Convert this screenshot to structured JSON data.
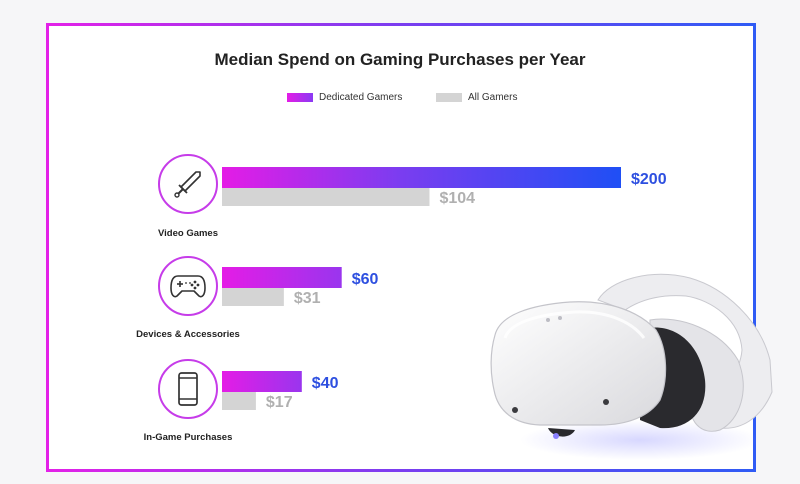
{
  "chart_data": {
    "type": "bar",
    "title": "Median Spend on Gaming Purchases per Year",
    "categories": [
      "Video Games",
      "Devices & Accessories",
      "In-Game Purchases"
    ],
    "series": [
      {
        "name": "Dedicated Gamers",
        "values": [
          200,
          60,
          40
        ],
        "labels": [
          "$200",
          "$60",
          "$40"
        ]
      },
      {
        "name": "All Gamers",
        "values": [
          104,
          31,
          17
        ],
        "labels": [
          "$104",
          "$31",
          "$17"
        ]
      }
    ],
    "xlabel": "",
    "ylabel": "",
    "xlim": [
      0,
      200
    ],
    "legend_position": "top-center",
    "grid": false
  },
  "icons": [
    "sword-icon",
    "gamepad-icon",
    "smartphone-icon"
  ],
  "decoration": "vr-headset-image",
  "colors": {
    "dedicated_start": "#e41ce6",
    "dedicated_end": "#1f4ff5",
    "all": "#d4d4d4",
    "dedicated_label": "#2d4fe0",
    "all_label": "#b0b0b0",
    "frame_start": "#e321e8",
    "frame_end": "#2f5bf5"
  }
}
